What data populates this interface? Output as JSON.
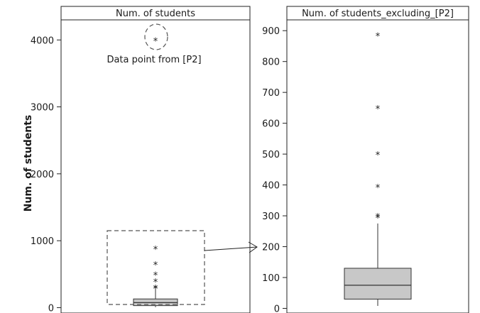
{
  "chart_data": {
    "type": "boxplot",
    "ylabel": "Num. of students",
    "panels": [
      {
        "title": "Num. of students",
        "ylim": [
          -80,
          4300
        ],
        "yticks": [
          0,
          1000,
          2000,
          3000,
          4000
        ],
        "box": {
          "q1": 30,
          "median": 75,
          "q3": 130,
          "whisker_low": 8,
          "whisker_high": 275
        },
        "outliers": [
          295,
          300,
          395,
          500,
          650,
          885,
          4000
        ],
        "annotation": "Data point from [P2]",
        "annotated_value": 4000
      },
      {
        "title": "Num. of students_excluding_[P2]",
        "ylim": [
          -15,
          935
        ],
        "yticks": [
          0,
          100,
          200,
          300,
          400,
          500,
          600,
          700,
          800,
          900
        ],
        "box": {
          "q1": 30,
          "median": 75,
          "q3": 130,
          "whisker_low": 8,
          "whisker_high": 275
        },
        "outliers": [
          295,
          300,
          395,
          500,
          650,
          885
        ]
      }
    ]
  }
}
